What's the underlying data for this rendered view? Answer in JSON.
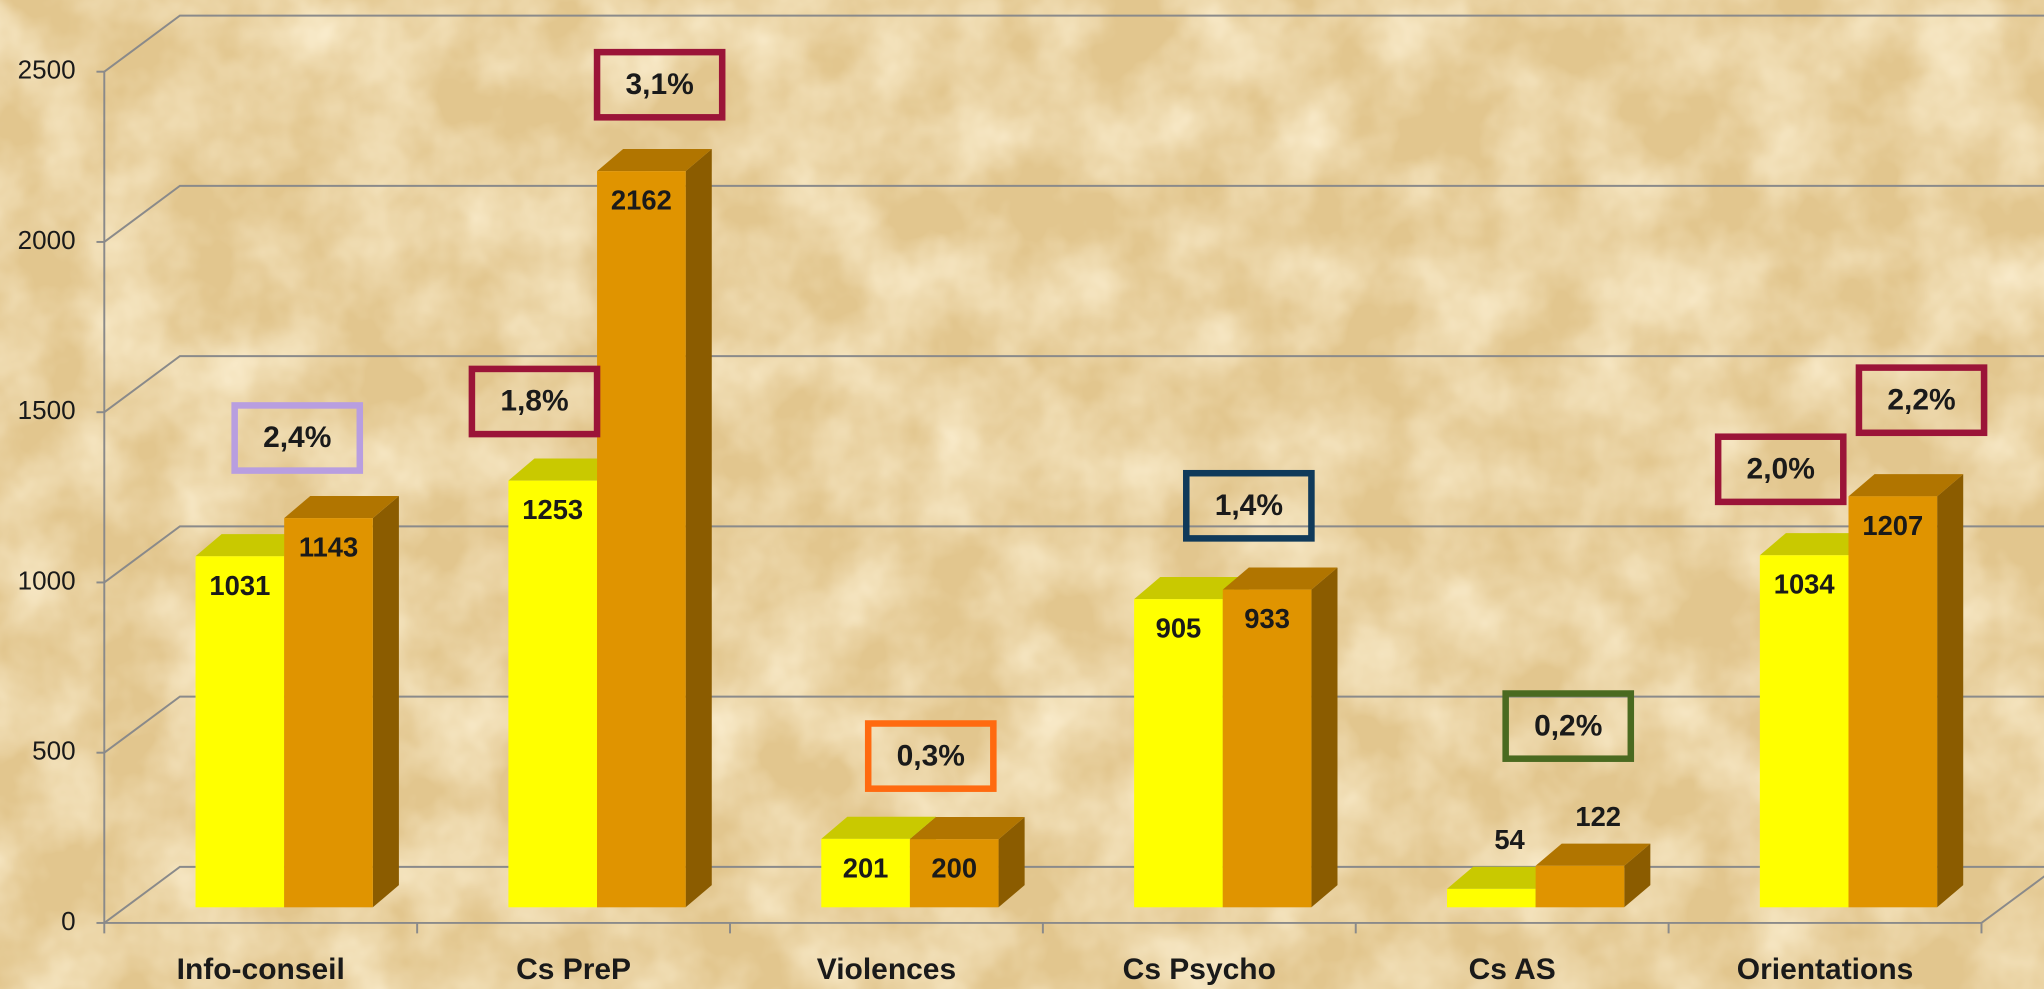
{
  "chart_data": {
    "type": "bar3d",
    "categories": [
      "Info-conseil",
      "Cs PreP",
      "Violences",
      "Cs Psycho",
      "Cs AS",
      "Orientations"
    ],
    "series": [
      {
        "color": "#ffff00",
        "values": [
          1031,
          1253,
          201,
          905,
          54,
          1034
        ]
      },
      {
        "color": "#e09400",
        "values": [
          1143,
          2162,
          200,
          933,
          122,
          1207
        ]
      }
    ],
    "ylim": [
      0,
      2500
    ],
    "yticks": [
      0,
      500,
      1000,
      1500,
      2000,
      2500
    ],
    "grid": true,
    "annotations": [
      {
        "text": "2,4%",
        "color": "#b89ee0"
      },
      {
        "text": "1,8%",
        "color": "#9b1438"
      },
      {
        "text": "3,1%",
        "color": "#9b1438"
      },
      {
        "text": "0,3%",
        "color": "#ff6a10"
      },
      {
        "text": "1,4%",
        "color": "#103a5a"
      },
      {
        "text": "0,2%",
        "color": "#4a6a20"
      },
      {
        "text": "2,0%",
        "color": "#9b1438"
      },
      {
        "text": "2,2%",
        "color": "#9b1438"
      }
    ]
  }
}
